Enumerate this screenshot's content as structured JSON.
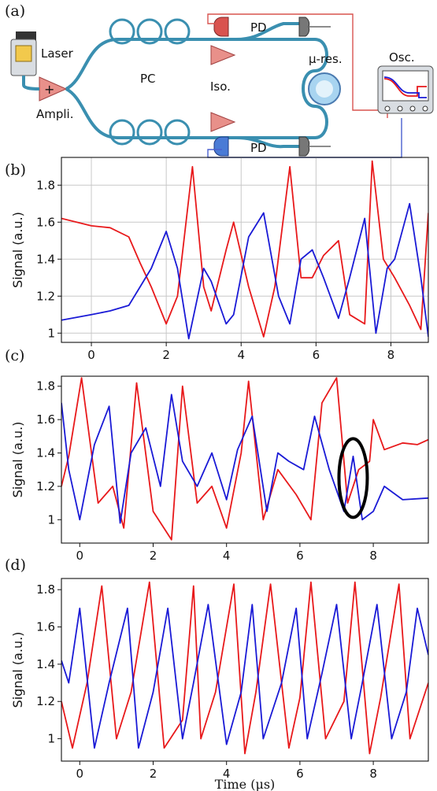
{
  "panel_letters": [
    "(a)",
    "(b)",
    "(c)",
    "(d)"
  ],
  "setup": {
    "labels": {
      "laser": "Laser",
      "ampli": "Ampli.",
      "pc": "PC",
      "iso": "Iso.",
      "pd_top": "PD",
      "pd_bottom": "PD",
      "mu_res": "μ-res.",
      "osc": "Osc."
    },
    "colors": {
      "fiber": "#3a8fb0",
      "amplifier": "#e8908a",
      "photodiode_red": "#d9534f",
      "photodiode_blue": "#4a7bd6",
      "connector_gray": "#666666",
      "red_wire": "#d9534f",
      "blue_wire": "#4a60d0"
    }
  },
  "chart_data": [
    {
      "panel": "(b)",
      "type": "line",
      "xlabel": "",
      "ylabel": "Signal (a.u.)",
      "xlim": [
        -0.8,
        9.0
      ],
      "ylim": [
        0.95,
        1.95
      ],
      "xticks": [
        0,
        2,
        4,
        6,
        8
      ],
      "yticks": [
        1.0,
        1.2,
        1.4,
        1.6,
        1.8
      ],
      "grid": true,
      "series": [
        {
          "color": "#e8191b",
          "x": [
            -0.8,
            0.0,
            0.5,
            1.0,
            1.3,
            1.6,
            2.0,
            2.3,
            2.7,
            3.0,
            3.2,
            3.6,
            3.8,
            4.2,
            4.6,
            4.9,
            5.3,
            5.6,
            5.9,
            6.2,
            6.6,
            6.9,
            7.3,
            7.5,
            7.8,
            8.1,
            8.5,
            8.8,
            9.0
          ],
          "y": [
            1.62,
            1.58,
            1.57,
            1.52,
            1.38,
            1.25,
            1.05,
            1.2,
            1.9,
            1.25,
            1.12,
            1.45,
            1.6,
            1.25,
            0.98,
            1.25,
            1.9,
            1.3,
            1.3,
            1.42,
            1.5,
            1.1,
            1.05,
            1.93,
            1.4,
            1.3,
            1.15,
            1.02,
            1.65
          ]
        },
        {
          "color": "#1a1ad6",
          "x": [
            -0.8,
            0.0,
            0.5,
            1.0,
            1.3,
            1.6,
            2.0,
            2.3,
            2.6,
            3.0,
            3.2,
            3.6,
            3.8,
            4.2,
            4.6,
            5.0,
            5.3,
            5.6,
            5.9,
            6.2,
            6.6,
            6.9,
            7.3,
            7.6,
            7.9,
            8.1,
            8.5,
            8.8,
            9.0
          ],
          "y": [
            1.07,
            1.1,
            1.12,
            1.15,
            1.25,
            1.35,
            1.55,
            1.35,
            0.97,
            1.35,
            1.28,
            1.05,
            1.1,
            1.52,
            1.65,
            1.2,
            1.05,
            1.4,
            1.45,
            1.3,
            1.08,
            1.3,
            1.62,
            1.0,
            1.35,
            1.4,
            1.7,
            1.3,
            0.98
          ]
        }
      ]
    },
    {
      "panel": "(c)",
      "type": "line",
      "xlabel": "",
      "ylabel": "Signal (a.u.)",
      "xlim": [
        -0.5,
        9.5
      ],
      "ylim": [
        0.86,
        1.86
      ],
      "xticks": [
        0,
        2,
        4,
        6,
        8
      ],
      "yticks": [
        1.0,
        1.2,
        1.4,
        1.6,
        1.8
      ],
      "grid": false,
      "annotation": {
        "shape": "ellipse",
        "x": 7.45,
        "y": 1.25
      },
      "series": [
        {
          "color": "#e8191b",
          "x": [
            -0.5,
            -0.3,
            0.05,
            0.5,
            0.9,
            1.2,
            1.55,
            2.0,
            2.5,
            2.8,
            3.2,
            3.6,
            4.0,
            4.4,
            4.6,
            5.0,
            5.4,
            5.9,
            6.3,
            6.6,
            7.0,
            7.3,
            7.6,
            7.9,
            8.0,
            8.3,
            8.8,
            9.2,
            9.5
          ],
          "y": [
            1.2,
            1.38,
            1.85,
            1.1,
            1.2,
            0.95,
            1.82,
            1.05,
            0.88,
            1.8,
            1.1,
            1.2,
            0.95,
            1.4,
            1.83,
            1.0,
            1.3,
            1.15,
            1.0,
            1.7,
            1.85,
            1.1,
            1.3,
            1.35,
            1.6,
            1.42,
            1.46,
            1.45,
            1.48
          ]
        },
        {
          "color": "#1a1ad6",
          "x": [
            -0.5,
            -0.3,
            0.0,
            0.4,
            0.8,
            1.1,
            1.4,
            1.8,
            2.2,
            2.5,
            2.8,
            3.2,
            3.6,
            4.0,
            4.3,
            4.7,
            5.1,
            5.4,
            5.7,
            6.1,
            6.4,
            6.8,
            7.2,
            7.45,
            7.7,
            8.0,
            8.3,
            8.8,
            9.5
          ],
          "y": [
            1.7,
            1.3,
            1.0,
            1.45,
            1.68,
            0.98,
            1.4,
            1.55,
            1.2,
            1.75,
            1.35,
            1.2,
            1.4,
            1.12,
            1.42,
            1.62,
            1.05,
            1.4,
            1.35,
            1.3,
            1.62,
            1.3,
            1.05,
            1.38,
            1.0,
            1.05,
            1.2,
            1.12,
            1.13
          ]
        }
      ]
    },
    {
      "panel": "(d)",
      "type": "line",
      "xlabel": "Time (μs)",
      "ylabel": "Signal (a.u.)",
      "xlim": [
        -0.5,
        9.5
      ],
      "ylim": [
        0.88,
        1.86
      ],
      "xticks": [
        0,
        2,
        4,
        6,
        8
      ],
      "yticks": [
        1.0,
        1.2,
        1.4,
        1.6,
        1.8
      ],
      "grid": false,
      "series": [
        {
          "color": "#e8191b",
          "x": [
            -0.5,
            -0.2,
            0.2,
            0.6,
            1.0,
            1.4,
            1.9,
            2.3,
            2.8,
            3.1,
            3.3,
            3.7,
            4.2,
            4.5,
            4.8,
            5.2,
            5.7,
            6.0,
            6.3,
            6.7,
            7.2,
            7.5,
            7.9,
            8.2,
            8.7,
            9.0,
            9.5
          ],
          "y": [
            1.2,
            0.95,
            1.3,
            1.82,
            1.0,
            1.25,
            1.84,
            0.95,
            1.1,
            1.82,
            1.0,
            1.25,
            1.83,
            0.92,
            1.25,
            1.83,
            0.95,
            1.22,
            1.84,
            1.0,
            1.2,
            1.84,
            0.92,
            1.22,
            1.83,
            1.0,
            1.3
          ]
        },
        {
          "color": "#1a1ad6",
          "x": [
            -0.5,
            -0.3,
            0.0,
            0.4,
            0.8,
            1.3,
            1.6,
            2.0,
            2.4,
            2.8,
            3.1,
            3.5,
            4.0,
            4.4,
            4.7,
            5.0,
            5.5,
            5.9,
            6.2,
            6.6,
            7.0,
            7.4,
            7.7,
            8.1,
            8.5,
            8.9,
            9.2,
            9.5
          ],
          "y": [
            1.42,
            1.3,
            1.7,
            0.95,
            1.3,
            1.7,
            0.95,
            1.25,
            1.7,
            1.0,
            1.3,
            1.72,
            0.97,
            1.25,
            1.72,
            1.0,
            1.3,
            1.7,
            1.0,
            1.35,
            1.72,
            1.0,
            1.3,
            1.72,
            1.0,
            1.25,
            1.7,
            1.45
          ]
        }
      ]
    }
  ]
}
